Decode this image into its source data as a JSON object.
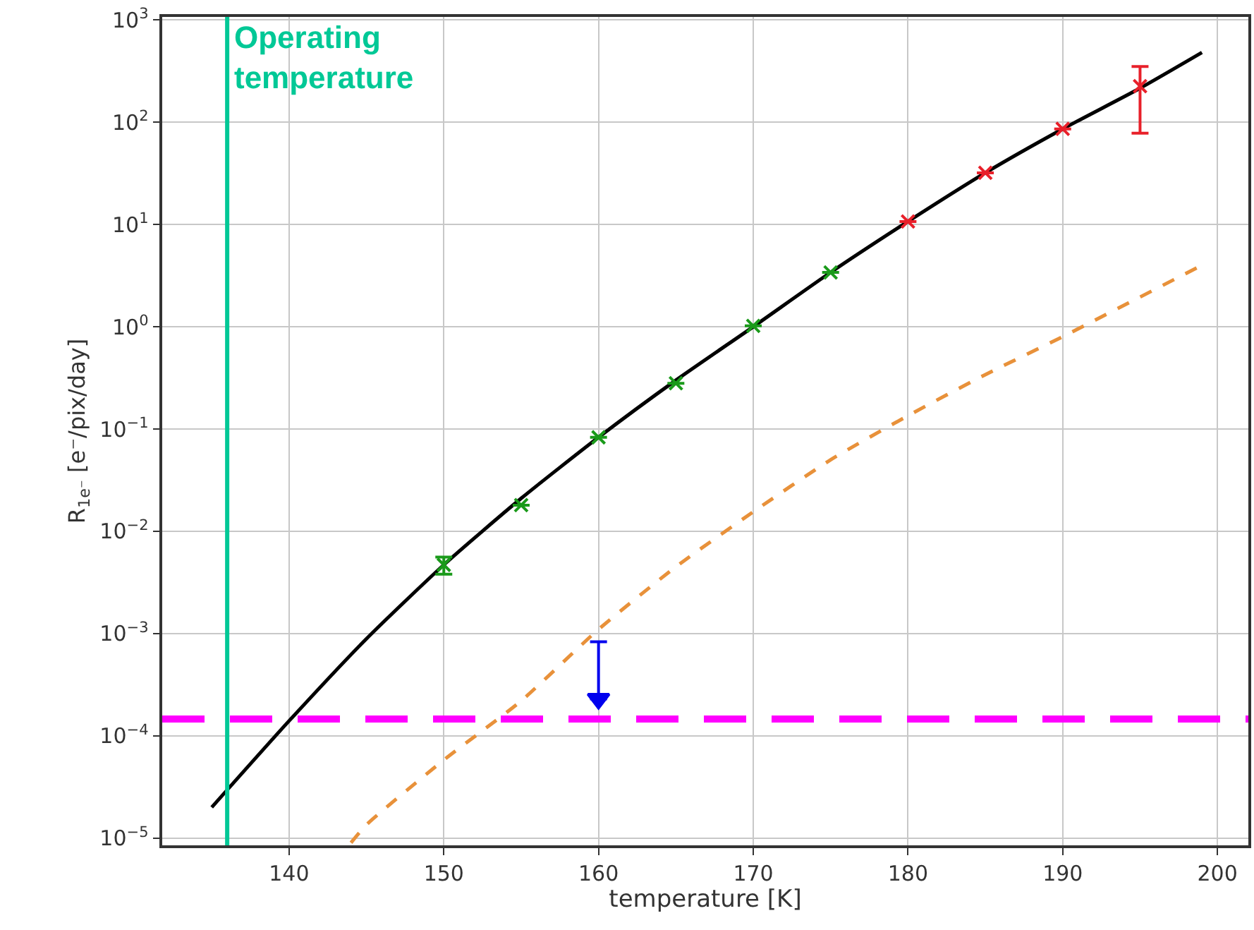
{
  "chart_data": {
    "type": "line",
    "xlabel": "temperature [K]",
    "ylabel": "R$_{1e⁻}$ [e⁻/pix/day]",
    "log": "y",
    "grid": true,
    "xlim": [
      131.8,
      202
    ],
    "xticks": [
      140,
      150,
      160,
      170,
      180,
      190,
      200
    ],
    "ylim": [
      8.5e-06,
      1070
    ],
    "yticks": [
      {
        "value": 1e-05,
        "label": "10$^{−5}$"
      },
      {
        "value": 0.0001,
        "label": "10$^{−4}$"
      },
      {
        "value": 0.001,
        "label": "10$^{−3}$"
      },
      {
        "value": 0.01,
        "label": "10$^{−2}$"
      },
      {
        "value": 0.1,
        "label": "10$^{−1}$"
      },
      {
        "value": 1,
        "label": "10$^{0}$"
      },
      {
        "value": 10,
        "label": "10$^{1}$"
      },
      {
        "value": 100,
        "label": "10$^{2}$"
      },
      {
        "value": 1000,
        "label": "10$^{3}$"
      }
    ],
    "series": [
      {
        "color": "#000000",
        "line_style": "solid",
        "marker": "none",
        "x": [
          135,
          140,
          145,
          150,
          155,
          160,
          165,
          170,
          175,
          180,
          185,
          190,
          195,
          199
        ],
        "values": [
          2e-05,
          0.00014,
          0.00089,
          0.0047,
          0.021,
          0.083,
          0.3,
          1.0,
          3.4,
          10.7,
          32,
          86,
          215,
          480
        ]
      },
      {
        "type": "line",
        "color": "#e8913a",
        "line_style": "dashed",
        "marker": "none",
        "x": [
          144,
          145,
          150,
          155,
          160,
          165,
          170,
          175,
          180,
          185,
          190,
          199
        ],
        "values": [
          9e-06,
          1.35e-05,
          5.8e-05,
          0.00022,
          0.0011,
          0.0045,
          0.0155,
          0.05,
          0.135,
          0.34,
          0.8,
          4
        ]
      },
      {
        "type": "scatter",
        "color": "#1a9a1a",
        "marker": "cross",
        "x": [
          150,
          155,
          160,
          165,
          170,
          175
        ],
        "values": [
          0.0047,
          0.018,
          0.083,
          0.28,
          1.02,
          3.4
        ],
        "errors": [
          [
            0.0038,
            0.0056
          ],
          null,
          null,
          null,
          null,
          null
        ]
      },
      {
        "type": "scatter",
        "color": "#e8202a",
        "marker": "cross",
        "x": [
          180,
          185,
          190,
          195
        ],
        "values": [
          10.7,
          32,
          86,
          225
        ],
        "errors": [
          null,
          null,
          null,
          [
            78,
            350
          ]
        ]
      },
      {
        "type": "scatter",
        "color": "#0000ee",
        "marker": "triangle",
        "x": [
          160
        ],
        "values": [
          0.00023
        ],
        "errors": [
          [
            0.00023,
            0.00083
          ]
        ]
      }
    ],
    "ref_lines": [
      {
        "axis": "x",
        "value": 136,
        "label": "Operating temperature",
        "color": "#00c896",
        "line_style": "solid"
      },
      {
        "axis": "y",
        "value": 0.000146,
        "label": null,
        "color": "#ff00ff",
        "line_style": "dashed"
      }
    ]
  }
}
